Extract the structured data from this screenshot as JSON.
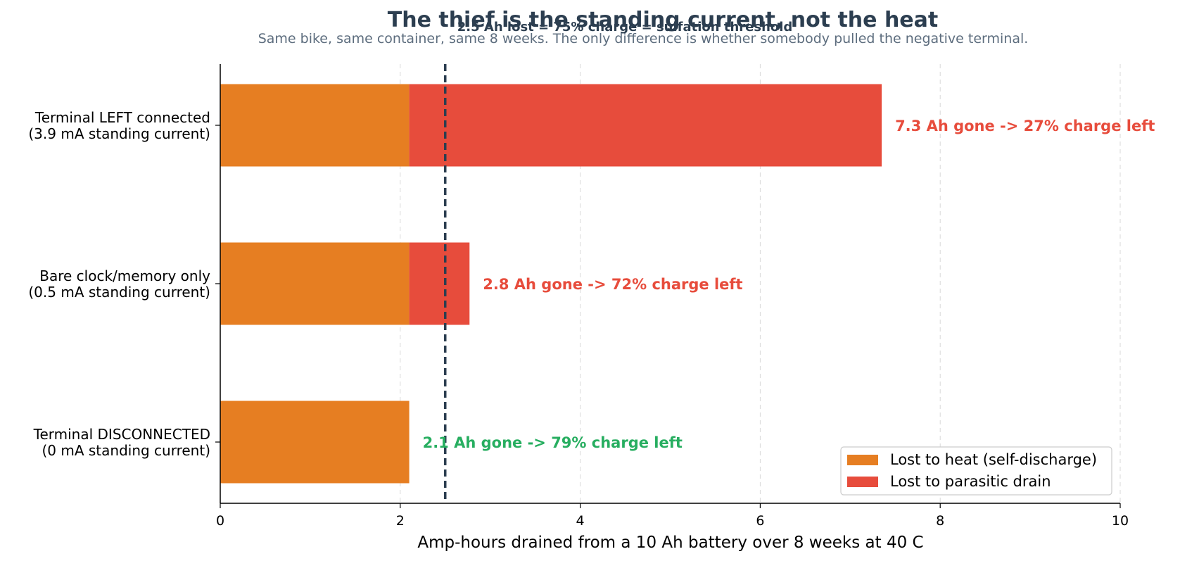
{
  "chart_data": {
    "type": "bar",
    "orientation": "horizontal",
    "stacked": true,
    "title": "The thief is the standing current, not the heat",
    "subtitle": "Same bike, same container, same 8 weeks. The only difference is whether somebody pulled the negative terminal.",
    "xlabel": "Amp-hours drained from a 10 Ah battery over 8 weeks at 40 C",
    "xlim": [
      0,
      10
    ],
    "xticks": [
      0,
      2,
      4,
      6,
      8,
      10
    ],
    "grid": "vertical dashed",
    "categories": [
      [
        "Terminal LEFT connected",
        "(3.9 mA standing current)"
      ],
      [
        "Bare clock/memory only",
        "(0.5 mA standing current)"
      ],
      [
        "Terminal DISCONNECTED",
        "(0 mA standing current)"
      ]
    ],
    "series": [
      {
        "name": "Lost to heat (self-discharge)",
        "color": "#e67e22",
        "values": [
          2.1,
          2.1,
          2.1
        ]
      },
      {
        "name": "Lost to parasitic drain",
        "color": "#e74c3c",
        "values": [
          5.25,
          0.67,
          0
        ]
      }
    ],
    "bar_annotations": [
      {
        "text": "7.3 Ah gone  ->  27% charge left",
        "color": "#e74c3c"
      },
      {
        "text": "2.8 Ah gone  ->  72% charge left",
        "color": "#e74c3c"
      },
      {
        "text": "2.1 Ah gone  ->  79% charge left",
        "color": "#27ae60"
      }
    ],
    "threshold": {
      "value": 2.5,
      "label": "2.5 Ah lost = 75% charge = sulfation threshold",
      "color": "#2c3e50"
    },
    "legend_position": "bottom-right"
  }
}
